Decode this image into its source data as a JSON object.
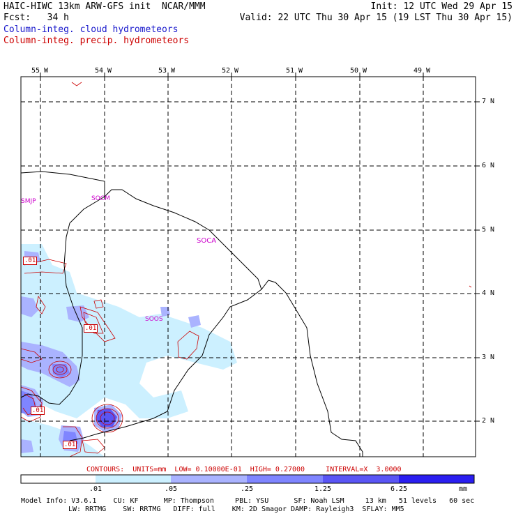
{
  "header": {
    "left_line1": "HAIC-HIWC 13km ARW-GFS init  NCAR/MMM",
    "left_line2": "Fcst:   34 h",
    "right_line1": "Init: 12 UTC Wed 29 Apr 15",
    "right_line2": "Valid: 22 UTC Thu 30 Apr 15 (19 LST Thu 30 Apr 15)",
    "field1": "Column-integ. cloud hydrometeors",
    "field2": "Column-integ. precip. hydrometeors"
  },
  "colors": {
    "cloud_text": "#1a1acc",
    "precip_text": "#cc0000",
    "station": "#cc00cc",
    "shade_1": "#ccf0ff",
    "shade_2": "#aab3ff",
    "shade_3": "#7f85ff",
    "shade_4": "#5a55f5",
    "shade_5": "#2a1ef0"
  },
  "map": {
    "lon_labels": [
      "55 W",
      "54 W",
      "53 W",
      "52 W",
      "51 W",
      "50 W",
      "49 W"
    ],
    "lat_labels": [
      "7 N",
      "6 N",
      "5 N",
      "4 N",
      "3 N",
      "2 N"
    ],
    "stations": [
      "SMJP",
      "SOCM",
      "SOCA",
      "SOOS"
    ],
    "contour_tags": [
      ".01",
      ".01",
      ".01",
      ".01"
    ]
  },
  "footer": {
    "contours_line": "CONTOURS:  UNITS=mm  LOW= 0.10000E-01  HIGH= 0.27000     INTERVAL=X  3.0000",
    "bar_labels": [
      ".01",
      ".05",
      ".25",
      "1.25",
      "6.25"
    ],
    "bar_unit": "mm",
    "model_line1": "Model Info: V3.6.1    CU: KF      MP: Thompson     PBL: YSU      SF: Noah LSM     13 km   51 levels   60 sec",
    "model_line2": "LW: RRTMG    SW: RRTMG   DIFF: full    KM: 2D Smagor DAMP: Rayleigh3  SFLAY: MM5"
  }
}
